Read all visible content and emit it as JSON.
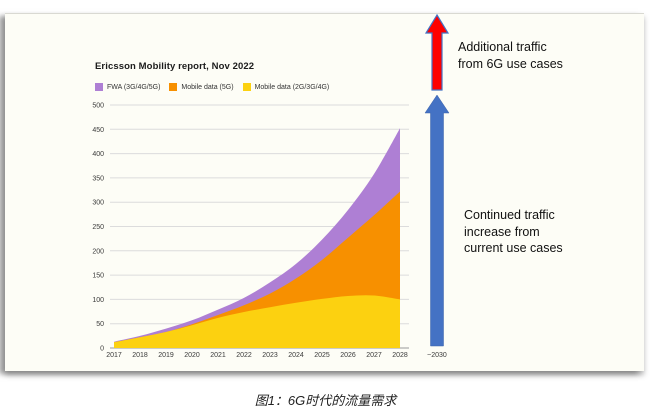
{
  "figure": {
    "caption": "图1：6G时代的流量需求"
  },
  "annotations": {
    "additional": "Additional traffic\nfrom 6G use cases",
    "continued": "Continued traffic\nincrease from\ncurrent use cases"
  },
  "arrows": {
    "red_color": "#fe0000",
    "blue_color": "#4472c4"
  },
  "chart_data": {
    "type": "area",
    "title": "Ericsson Mobility report, Nov 2022",
    "stacked": true,
    "grid": true,
    "x": [
      2017,
      2018,
      2019,
      2020,
      2021,
      2022,
      2023,
      2024,
      2025,
      2026,
      2027,
      2028
    ],
    "x_extra_label": "~2030",
    "ylim": [
      0,
      500
    ],
    "ytick_step": 50,
    "series": [
      {
        "name": "FWA (3G/4G/5G)",
        "color": "#ae7fd4",
        "values": [
          1,
          3,
          7,
          8,
          11,
          15,
          23,
          30,
          42,
          57,
          85,
          130
        ]
      },
      {
        "name": "Mobile data (5G)",
        "color": "#f79000",
        "values": [
          0,
          0,
          0,
          2,
          6,
          14,
          28,
          50,
          80,
          120,
          165,
          222
        ]
      },
      {
        "name": "Mobile data (2G/3G/4G)",
        "color": "#fcd110",
        "values": [
          12,
          22,
          33,
          47,
          62,
          74,
          84,
          93,
          101,
          107,
          108,
          100
        ]
      }
    ]
  }
}
